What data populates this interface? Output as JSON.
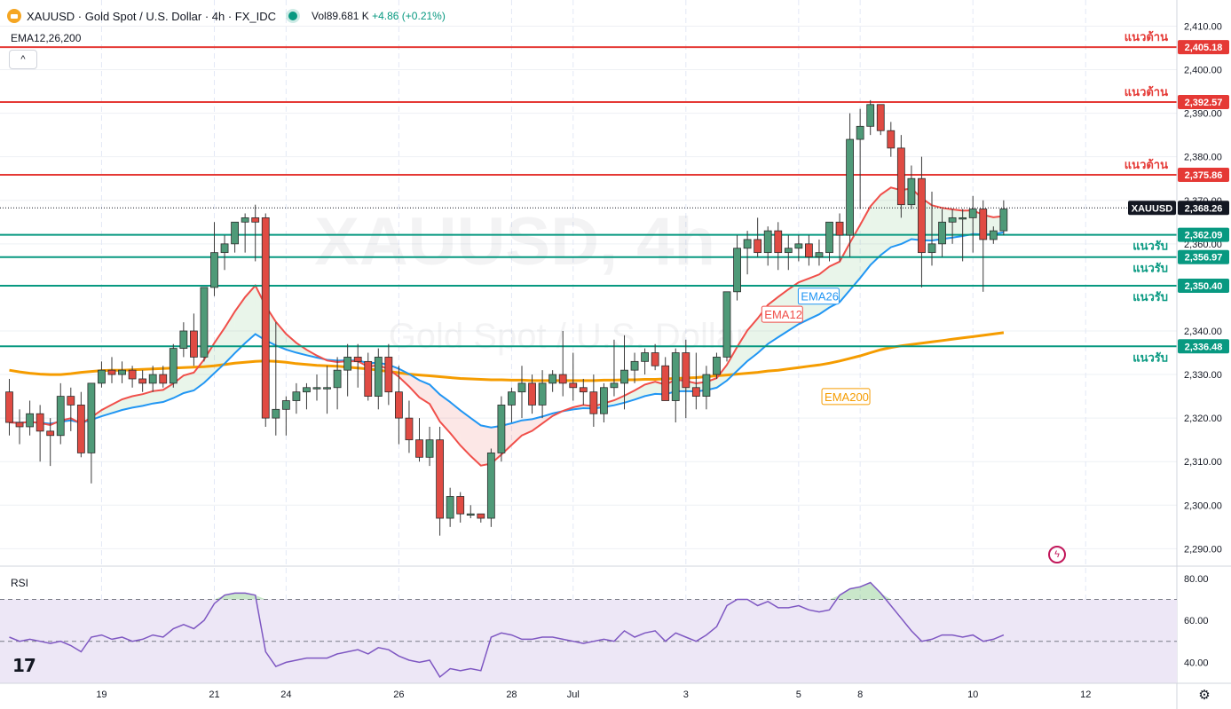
{
  "header": {
    "title": "XAUUSD · Gold Spot / U.S. Dollar · 4h · FX_IDC",
    "volume_label": "Vol",
    "volume_value": "89.681 K",
    "change": "+4.86 (+0.21%)",
    "indicator": "EMA12,26,200",
    "collapse": "^"
  },
  "watermark": {
    "line1": "XAUUSD, 4h",
    "line2": "Gold Spot / U.S. Dollar"
  },
  "icons": {
    "symbol": "gold-coin-icon",
    "live": "market-open-dot-icon",
    "settings": "gear-icon",
    "logo": "tradingview-logo-icon",
    "flash": "flash-icon"
  },
  "logo_text": "17",
  "rsi_title": "RSI",
  "colors": {
    "up": "#4f9a78",
    "down": "#e04b43",
    "resistance": "#e53935",
    "support": "#089981",
    "ema12": "#f04f4a",
    "ema26": "#2196f3",
    "ema200": "#f59c00",
    "rsi": "#7e57c2",
    "rsi_band": "#ede7f6"
  },
  "chart_data": {
    "type": "candlestick",
    "symbol": "XAUUSD",
    "ylim": [
      2286,
      2416
    ],
    "y_ticks": [
      "2,410.00",
      "2,400.00",
      "2,390.00",
      "2,380.00",
      "2,370.00",
      "2,360.00",
      "2,340.00",
      "2,330.00",
      "2,320.00",
      "2,310.00",
      "2,300.00",
      "2,290.00"
    ],
    "y_tick_values": [
      2410,
      2400,
      2390,
      2380,
      2370,
      2360,
      2340,
      2330,
      2320,
      2310,
      2300,
      2290
    ],
    "x_ticks": [
      {
        "label": "19",
        "bar": 9
      },
      {
        "label": "21",
        "bar": 20
      },
      {
        "label": "24",
        "bar": 27
      },
      {
        "label": "26",
        "bar": 38
      },
      {
        "label": "28",
        "bar": 49
      },
      {
        "label": "Jul",
        "bar": 55
      },
      {
        "label": "3",
        "bar": 66
      },
      {
        "label": "5",
        "bar": 77
      },
      {
        "label": "8",
        "bar": 83
      },
      {
        "label": "10",
        "bar": 94
      },
      {
        "label": "12",
        "bar": 105
      }
    ],
    "candles": [
      [
        2326,
        2329,
        2316,
        2319
      ],
      [
        2319,
        2322,
        2314,
        2318
      ],
      [
        2318,
        2324,
        2316,
        2321
      ],
      [
        2321,
        2323,
        2310,
        2317
      ],
      [
        2317,
        2320,
        2309,
        2316
      ],
      [
        2316,
        2328,
        2314,
        2325
      ],
      [
        2325,
        2327,
        2317,
        2323
      ],
      [
        2323,
        2326,
        2311,
        2312
      ],
      [
        2312,
        2327,
        2305,
        2328
      ],
      [
        2328,
        2333,
        2327,
        2331
      ],
      [
        2331,
        2334,
        2328,
        2330
      ],
      [
        2330,
        2333,
        2328,
        2331
      ],
      [
        2331,
        2332,
        2327,
        2329
      ],
      [
        2329,
        2331,
        2326,
        2328
      ],
      [
        2328,
        2332,
        2326,
        2330
      ],
      [
        2330,
        2332,
        2327,
        2328
      ],
      [
        2328,
        2337,
        2327,
        2336
      ],
      [
        2336,
        2342,
        2334,
        2340
      ],
      [
        2340,
        2344,
        2332,
        2334
      ],
      [
        2334,
        2350,
        2333,
        2350
      ],
      [
        2350,
        2365,
        2348,
        2358
      ],
      [
        2358,
        2362,
        2354,
        2360
      ],
      [
        2360,
        2365,
        2358,
        2365
      ],
      [
        2365,
        2367,
        2358,
        2366
      ],
      [
        2366,
        2369,
        2356,
        2365
      ],
      [
        2366,
        2367,
        2318,
        2320
      ],
      [
        2320,
        2342,
        2316,
        2322
      ],
      [
        2322,
        2325,
        2316,
        2324
      ],
      [
        2324,
        2328,
        2321,
        2326
      ],
      [
        2326,
        2328,
        2322,
        2327
      ],
      [
        2327,
        2330,
        2324,
        2327
      ],
      [
        2327,
        2332,
        2321,
        2327
      ],
      [
        2327,
        2334,
        2322,
        2331
      ],
      [
        2331,
        2337,
        2325,
        2334
      ],
      [
        2334,
        2337,
        2327,
        2333
      ],
      [
        2333,
        2335,
        2324,
        2325
      ],
      [
        2325,
        2336,
        2322,
        2334
      ],
      [
        2334,
        2337,
        2323,
        2326
      ],
      [
        2326,
        2332,
        2314,
        2320
      ],
      [
        2320,
        2324,
        2312,
        2315
      ],
      [
        2315,
        2320,
        2310,
        2311
      ],
      [
        2311,
        2318,
        2309,
        2315
      ],
      [
        2315,
        2318,
        2293,
        2297
      ],
      [
        2297,
        2304,
        2295,
        2302
      ],
      [
        2302,
        2303,
        2296,
        2298
      ],
      [
        2298,
        2300,
        2297,
        2298
      ],
      [
        2298,
        2298,
        2296,
        2297
      ],
      [
        2297,
        2313,
        2295,
        2312
      ],
      [
        2312,
        2325,
        2310,
        2323
      ],
      [
        2323,
        2327,
        2319,
        2326
      ],
      [
        2326,
        2332,
        2320,
        2328
      ],
      [
        2328,
        2330,
        2321,
        2323
      ],
      [
        2323,
        2331,
        2320,
        2328
      ],
      [
        2328,
        2331,
        2326,
        2330
      ],
      [
        2330,
        2340,
        2325,
        2328
      ],
      [
        2328,
        2335,
        2324,
        2327
      ],
      [
        2327,
        2329,
        2323,
        2326
      ],
      [
        2326,
        2330,
        2318,
        2321
      ],
      [
        2321,
        2328,
        2319,
        2327
      ],
      [
        2327,
        2338,
        2325,
        2328
      ],
      [
        2328,
        2339,
        2322,
        2331
      ],
      [
        2331,
        2335,
        2328,
        2333
      ],
      [
        2333,
        2336,
        2330,
        2335
      ],
      [
        2335,
        2337,
        2331,
        2332
      ],
      [
        2332,
        2334,
        2324,
        2324
      ],
      [
        2324,
        2336,
        2319,
        2335
      ],
      [
        2335,
        2338,
        2320,
        2327
      ],
      [
        2327,
        2335,
        2322,
        2325
      ],
      [
        2325,
        2332,
        2322,
        2330
      ],
      [
        2330,
        2335,
        2329,
        2334
      ],
      [
        2334,
        2349,
        2333,
        2349
      ],
      [
        2349,
        2362,
        2347,
        2359
      ],
      [
        2359,
        2363,
        2353,
        2361
      ],
      [
        2361,
        2366,
        2357,
        2358
      ],
      [
        2358,
        2364,
        2355,
        2363
      ],
      [
        2363,
        2365,
        2354,
        2358
      ],
      [
        2358,
        2362,
        2354,
        2359
      ],
      [
        2359,
        2362,
        2356,
        2360
      ],
      [
        2360,
        2362,
        2355,
        2357
      ],
      [
        2357,
        2361,
        2355,
        2358
      ],
      [
        2358,
        2365,
        2356,
        2365
      ],
      [
        2365,
        2367,
        2356,
        2362
      ],
      [
        2362,
        2390,
        2357,
        2384
      ],
      [
        2384,
        2391,
        2368,
        2387
      ],
      [
        2387,
        2393,
        2385,
        2392
      ],
      [
        2392,
        2392,
        2385,
        2386
      ],
      [
        2386,
        2388,
        2380,
        2382
      ],
      [
        2382,
        2385,
        2366,
        2369
      ],
      [
        2369,
        2378,
        2368,
        2375
      ],
      [
        2375,
        2380,
        2350,
        2358
      ],
      [
        2358,
        2372,
        2355,
        2360
      ],
      [
        2360,
        2368,
        2357,
        2365
      ],
      [
        2365,
        2368,
        2360,
        2366
      ],
      [
        2366,
        2368,
        2356,
        2366
      ],
      [
        2366,
        2371,
        2358,
        2368
      ],
      [
        2368,
        2370,
        2349,
        2361
      ],
      [
        2361,
        2364,
        2360,
        2363
      ],
      [
        2363,
        2370,
        2362,
        2368
      ]
    ],
    "levels": [
      {
        "value": 2405.18,
        "label": "2,405.18",
        "kind": "resistance",
        "note": "แนวต้าน"
      },
      {
        "value": 2392.57,
        "label": "2,392.57",
        "kind": "resistance",
        "note": "แนวต้าน"
      },
      {
        "value": 2375.86,
        "label": "2,375.86",
        "kind": "resistance",
        "note": "แนวต้าน"
      },
      {
        "value": 2362.09,
        "label": "2,362.09",
        "kind": "support",
        "note": "แนวรับ"
      },
      {
        "value": 2356.97,
        "label": "2,356.97",
        "kind": "support",
        "note": "แนวรับ"
      },
      {
        "value": 2350.4,
        "label": "2,350.40",
        "kind": "support",
        "note": "แนวรับ"
      },
      {
        "value": 2336.48,
        "label": "2,336.48",
        "kind": "support",
        "note": "แนวรับ"
      }
    ],
    "last_price": {
      "value": 2368.26,
      "label": "2,368.26",
      "symbol": "XAUUSD"
    },
    "ema_labels": {
      "ema12": "EMA12",
      "ema26": "EMA26",
      "ema200": "EMA200"
    },
    "ema_label_anchor_bars": {
      "ema12": 76,
      "ema26": 78,
      "ema200": 81
    },
    "ema200": [
      2331,
      2330.6,
      2330.3,
      2330.1,
      2330.0,
      2330.0,
      2330.2,
      2330.5,
      2330.7,
      2330.9,
      2331.0,
      2331.0,
      2331.1,
      2331.2,
      2331.3,
      2331.4,
      2331.5,
      2331.6,
      2331.7,
      2331.8,
      2332.0,
      2332.3,
      2332.6,
      2332.8,
      2333.0,
      2333.1,
      2333.0,
      2332.8,
      2332.5,
      2332.3,
      2332.1,
      2332.0,
      2331.9,
      2331.7,
      2331.5,
      2331.3,
      2331.0,
      2330.7,
      2330.4,
      2330.1,
      2329.9,
      2329.7,
      2329.5,
      2329.3,
      2329.1,
      2329.0,
      2328.9,
      2328.8,
      2328.8,
      2328.7,
      2328.7,
      2328.6,
      2328.6,
      2328.6,
      2328.6,
      2328.6,
      2328.6,
      2328.6,
      2328.7,
      2328.7,
      2328.8,
      2328.8,
      2328.9,
      2328.9,
      2329.0,
      2329.1,
      2329.2,
      2329.3,
      2329.5,
      2329.7,
      2329.9,
      2330.1,
      2330.3,
      2330.5,
      2330.8,
      2331.0,
      2331.3,
      2331.6,
      2331.9,
      2332.2,
      2332.6,
      2333.1,
      2333.7,
      2334.3,
      2335.0,
      2335.7,
      2336.2,
      2336.6,
      2336.9,
      2337.2,
      2337.5,
      2337.8,
      2338.1,
      2338.4,
      2338.7,
      2339.0,
      2339.3,
      2339.6
    ],
    "rsi": {
      "ylim": [
        30,
        85
      ],
      "band": [
        30,
        70
      ],
      "mid": 50,
      "ticks": [
        "80.00",
        "60.00",
        "40.00"
      ],
      "tick_values": [
        80,
        60,
        40
      ],
      "values": [
        52,
        50,
        51,
        50,
        49,
        50,
        48,
        45,
        52,
        53,
        51,
        52,
        50,
        51,
        53,
        52,
        56,
        58,
        56,
        60,
        68,
        72,
        73,
        73,
        72,
        45,
        38,
        40,
        41,
        42,
        42,
        42,
        44,
        45,
        46,
        44,
        47,
        46,
        43,
        41,
        40,
        41,
        33,
        37,
        36,
        37,
        36,
        52,
        54,
        53,
        51,
        51,
        52,
        52,
        51,
        50,
        49,
        50,
        51,
        50,
        55,
        52,
        54,
        55,
        50,
        54,
        52,
        50,
        53,
        57,
        67,
        70,
        70,
        67,
        69,
        66,
        66,
        67,
        65,
        64,
        65,
        72,
        75,
        76,
        78,
        73,
        67,
        61,
        55,
        50,
        51,
        53,
        53,
        52,
        53,
        50,
        51,
        53
      ]
    }
  }
}
